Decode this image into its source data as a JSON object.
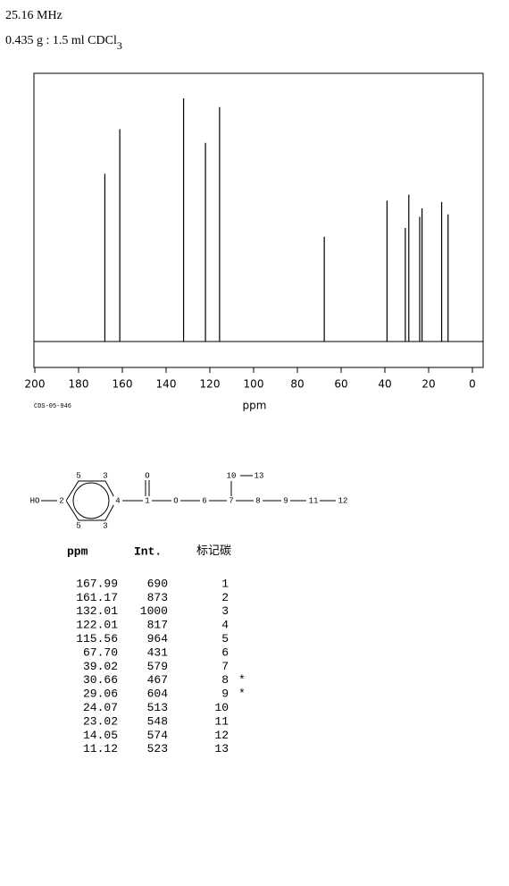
{
  "header": {
    "frequency": "25.16 MHz",
    "sample": "0.435 g : 1.5 ml CDCl",
    "sample_subscript": "3"
  },
  "chart_data": {
    "type": "spectrum",
    "xlabel": "ppm",
    "code": "CDS-05-946",
    "x": [
      167.99,
      161.17,
      132.01,
      122.01,
      115.56,
      67.7,
      39.02,
      30.66,
      29.06,
      24.07,
      23.02,
      14.05,
      11.12
    ],
    "values": [
      690,
      873,
      1000,
      817,
      964,
      431,
      579,
      467,
      604,
      513,
      548,
      574,
      523
    ],
    "color": "#000000",
    "xlim": [
      200,
      0
    ],
    "xticks": [
      200,
      180,
      160,
      140,
      120,
      100,
      80,
      60,
      40,
      20,
      0
    ]
  },
  "structure": {
    "labels": [
      "HO",
      "2",
      "5",
      "3",
      "4",
      "5",
      "3",
      "1",
      "O",
      "O",
      "6",
      "7",
      "10",
      "13",
      "8",
      "9",
      "11",
      "12"
    ]
  },
  "table": {
    "header": [
      "ppm",
      "Int.",
      "标记碳"
    ],
    "rows": [
      [
        "167.99",
        "690",
        "1",
        ""
      ],
      [
        "161.17",
        "873",
        "2",
        ""
      ],
      [
        "132.01",
        "1000",
        "3",
        ""
      ],
      [
        "122.01",
        "817",
        "4",
        ""
      ],
      [
        "115.56",
        "964",
        "5",
        ""
      ],
      [
        "67.70",
        "431",
        "6",
        ""
      ],
      [
        "39.02",
        "579",
        "7",
        ""
      ],
      [
        "30.66",
        "467",
        "8",
        "*"
      ],
      [
        "29.06",
        "604",
        "9",
        "*"
      ],
      [
        "24.07",
        "513",
        "10",
        ""
      ],
      [
        "23.02",
        "548",
        "11",
        ""
      ],
      [
        "14.05",
        "574",
        "12",
        ""
      ],
      [
        "11.12",
        "523",
        "13",
        ""
      ]
    ]
  }
}
